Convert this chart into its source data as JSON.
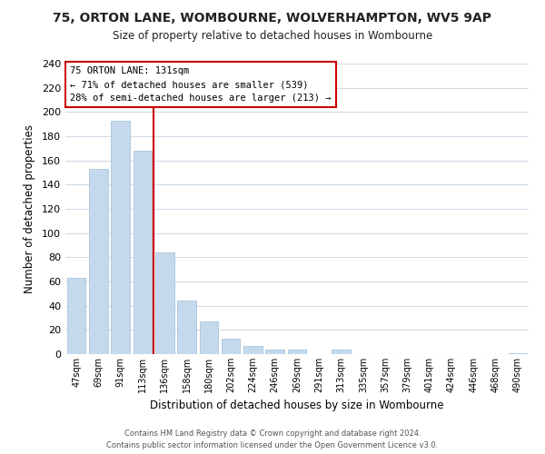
{
  "title": "75, ORTON LANE, WOMBOURNE, WOLVERHAMPTON, WV5 9AP",
  "subtitle": "Size of property relative to detached houses in Wombourne",
  "xlabel": "Distribution of detached houses by size in Wombourne",
  "ylabel": "Number of detached properties",
  "bar_labels": [
    "47sqm",
    "69sqm",
    "91sqm",
    "113sqm",
    "136sqm",
    "158sqm",
    "180sqm",
    "202sqm",
    "224sqm",
    "246sqm",
    "269sqm",
    "291sqm",
    "313sqm",
    "335sqm",
    "357sqm",
    "379sqm",
    "401sqm",
    "424sqm",
    "446sqm",
    "468sqm",
    "490sqm"
  ],
  "bar_values": [
    63,
    153,
    193,
    168,
    84,
    44,
    27,
    13,
    7,
    4,
    4,
    0,
    4,
    0,
    0,
    0,
    0,
    0,
    0,
    0,
    1
  ],
  "bar_color": "#c5d9ed",
  "bar_edge_color": "#a0bed8",
  "highlight_line_color": "#cc0000",
  "ylim": [
    0,
    240
  ],
  "yticks": [
    0,
    20,
    40,
    60,
    80,
    100,
    120,
    140,
    160,
    180,
    200,
    220,
    240
  ],
  "annotation_title": "75 ORTON LANE: 131sqm",
  "annotation_line1": "← 71% of detached houses are smaller (539)",
  "annotation_line2": "28% of semi-detached houses are larger (213) →",
  "annotation_box_color": "#ffffff",
  "annotation_box_edge_color": "#cc0000",
  "footer_line1": "Contains HM Land Registry data © Crown copyright and database right 2024.",
  "footer_line2": "Contains public sector information licensed under the Open Government Licence v3.0.",
  "bg_color": "#ffffff",
  "grid_color": "#d0dce8"
}
